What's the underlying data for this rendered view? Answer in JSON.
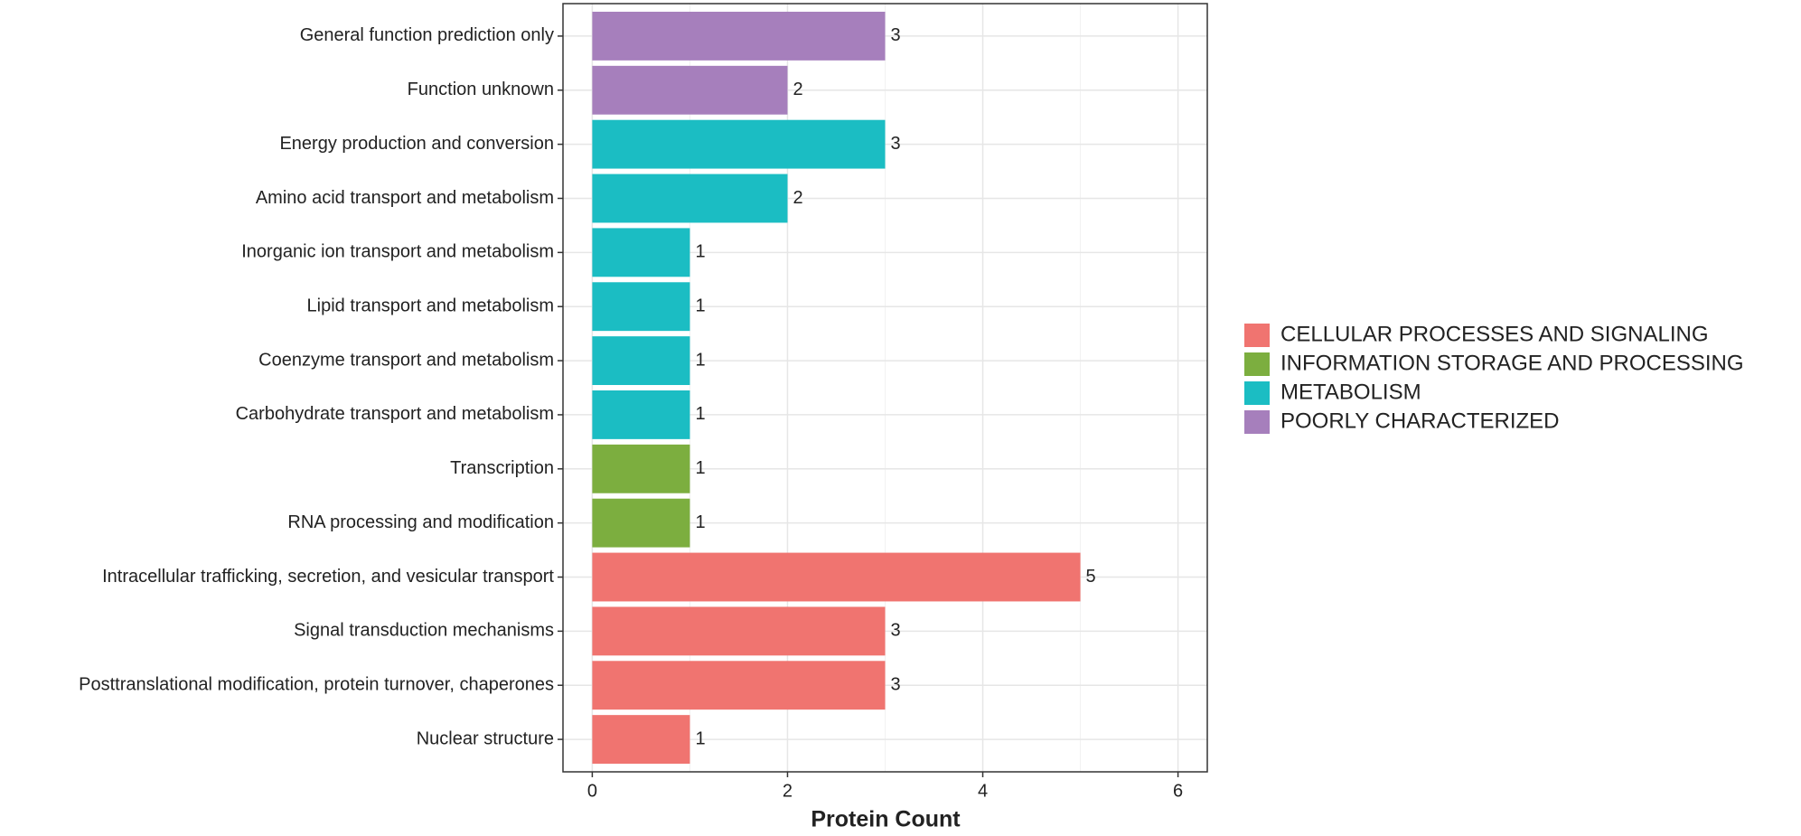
{
  "chart_data": {
    "type": "bar",
    "orientation": "horizontal",
    "x_label": "Protein Count",
    "categories": [
      "General function prediction only",
      "Function unknown",
      "Energy production and conversion",
      "Amino acid transport and metabolism",
      "Inorganic ion transport and metabolism",
      "Lipid transport and metabolism",
      "Coenzyme transport and metabolism",
      "Carbohydrate transport and metabolism",
      "Transcription",
      "RNA processing and modification",
      "Intracellular trafficking, secretion, and vesicular transport",
      "Signal transduction mechanisms",
      "Posttranslational modification, protein turnover, chaperones",
      "Nuclear structure"
    ],
    "series": [
      {
        "name": "CELLULAR PROCESSES AND SIGNALING",
        "color": "#f07470",
        "values": [
          null,
          null,
          null,
          null,
          null,
          null,
          null,
          null,
          null,
          null,
          5,
          3,
          3,
          1
        ]
      },
      {
        "name": "INFORMATION STORAGE AND PROCESSING",
        "color": "#7cae3f",
        "values": [
          null,
          null,
          null,
          null,
          null,
          null,
          null,
          null,
          1,
          1,
          null,
          null,
          null,
          null
        ]
      },
      {
        "name": "METABOLISM",
        "color": "#1bbdc3",
        "values": [
          null,
          null,
          3,
          2,
          1,
          1,
          1,
          1,
          null,
          null,
          null,
          null,
          null,
          null
        ]
      },
      {
        "name": "POORLY CHARACTERIZED",
        "color": "#a67fbc",
        "values": [
          3,
          2,
          null,
          null,
          null,
          null,
          null,
          null,
          null,
          null,
          null,
          null,
          null,
          null
        ]
      }
    ],
    "xlim": [
      -0.3,
      6.3
    ],
    "xticks": [
      0,
      2,
      4,
      6
    ],
    "grid": true,
    "show_value_labels": true,
    "legend": "right"
  }
}
